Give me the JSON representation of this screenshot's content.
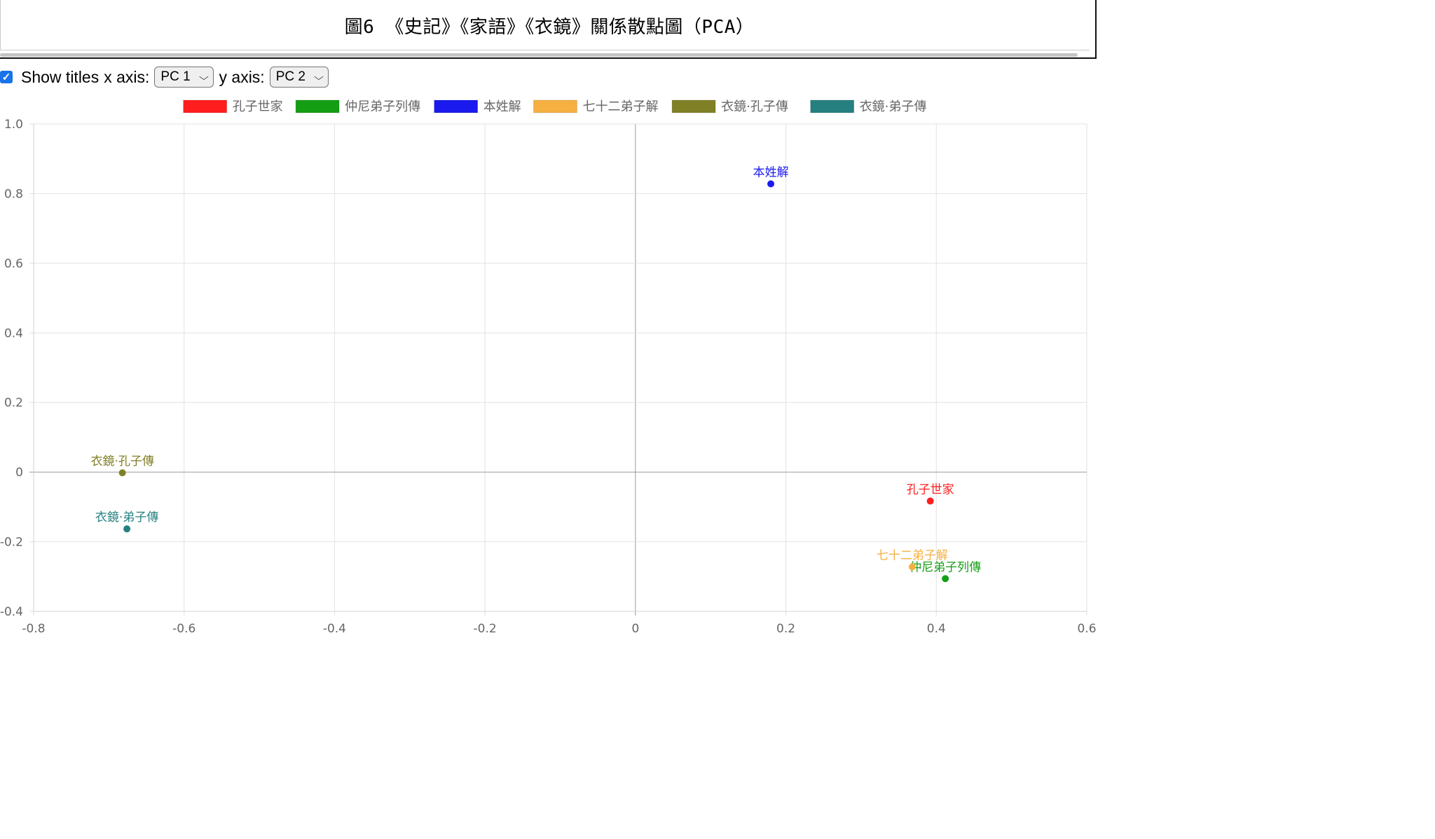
{
  "title": "圖6 《史記》《家語》《衣鏡》關係散點圖（PCA）",
  "controls": {
    "show_titles_label": "Show titles",
    "x_axis_label": "x axis:",
    "x_axis_value": "PC 1",
    "y_axis_label": "y axis:",
    "y_axis_value": "PC 2"
  },
  "chart_data": {
    "type": "scatter",
    "xlim": [
      -0.8,
      0.6
    ],
    "ylim": [
      -0.4,
      1.0
    ],
    "xticks": [
      "-0.8",
      "-0.6",
      "-0.4",
      "-0.2",
      "0",
      "0.2",
      "0.4",
      "0.6"
    ],
    "yticks": [
      "1.0",
      "0.8",
      "0.6",
      "0.4",
      "0.2",
      "0",
      "-0.2",
      "-0.4"
    ],
    "grid": true,
    "legend_position": "top",
    "series": [
      {
        "name": "孔子世家",
        "color": "#ff1e1e",
        "x": 0.392,
        "y": -0.083
      },
      {
        "name": "仲尼弟子列傳",
        "color": "#149e14",
        "x": 0.412,
        "y": -0.306
      },
      {
        "name": "本姓解",
        "color": "#1a1aee",
        "x": 0.18,
        "y": 0.828
      },
      {
        "name": "七十二弟子解",
        "color": "#f5b041",
        "x": 0.368,
        "y": -0.272
      },
      {
        "name": "衣鏡·孔子傳",
        "color": "#808026",
        "x": -0.682,
        "y": -0.002
      },
      {
        "name": "衣鏡·弟子傳",
        "color": "#268080",
        "x": -0.676,
        "y": -0.163
      }
    ]
  }
}
